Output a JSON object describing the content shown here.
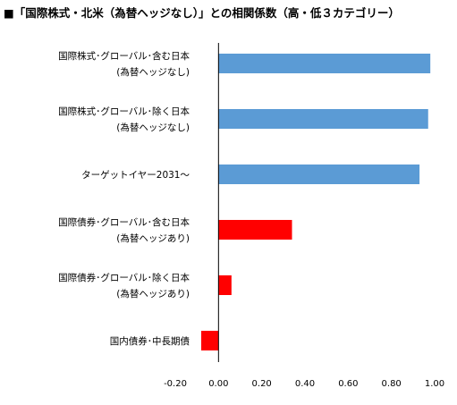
{
  "chart_data": {
    "type": "bar",
    "orientation": "horizontal",
    "title": "■「国際株式・北米（為替ヘッジなし）」との相関係数（高・低３カテゴリー）",
    "categories": [
      [
        "国際株式･グローバル･含む日本",
        "(為替ヘッジなし)"
      ],
      [
        "国際株式･グローバル･除く日本",
        "(為替ヘッジなし)"
      ],
      [
        "ターゲットイヤー2031〜"
      ],
      [
        "国際債券･グローバル･含む日本",
        "(為替ヘッジあり)"
      ],
      [
        "国際債券･グローバル･除く日本",
        "(為替ヘッジあり)"
      ],
      [
        "国内債券･中長期債"
      ]
    ],
    "values": [
      0.98,
      0.97,
      0.93,
      0.34,
      0.06,
      -0.08
    ],
    "colors": [
      "#5b9bd5",
      "#5b9bd5",
      "#5b9bd5",
      "#ff0000",
      "#ff0000",
      "#ff0000"
    ],
    "xlim": [
      -0.2,
      1.0
    ],
    "xticks": [
      "-0.20",
      "0.00",
      "0.20",
      "0.40",
      "0.60",
      "0.80",
      "1.00"
    ],
    "xtick_values": [
      -0.2,
      0.0,
      0.2,
      0.4,
      0.6,
      0.8,
      1.0
    ],
    "grid": false,
    "legend": "none"
  }
}
